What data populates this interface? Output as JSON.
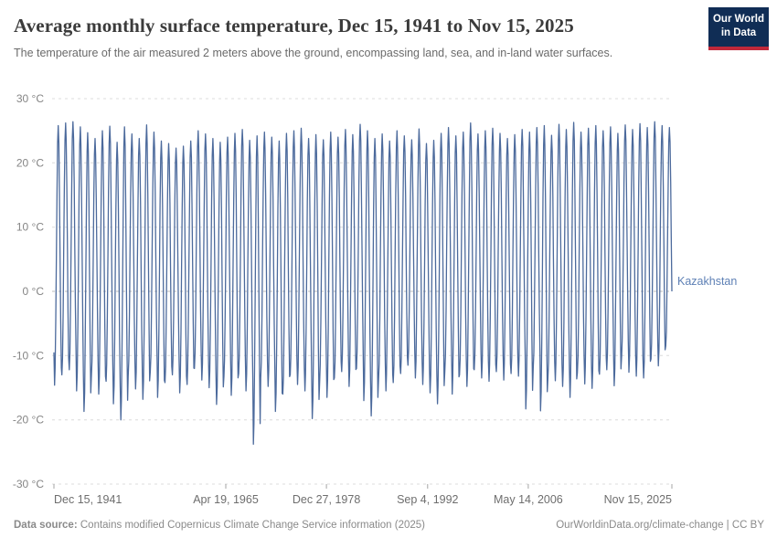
{
  "header": {
    "title": "Average monthly surface temperature, Dec 15, 1941 to Nov 15, 2025",
    "subtitle": "The temperature of the air measured 2 meters above the ground, encompassing land, sea, and in-land water surfaces.",
    "logo": {
      "line1": "Our World",
      "line2": "in Data",
      "bg_color": "#102d55",
      "bar_color": "#c0283a"
    }
  },
  "footer": {
    "datasource_label": "Data source:",
    "datasource_text": " Contains modified Copernicus Climate Change Service information (2025)",
    "link_text": "OurWorldinData.org/climate-change | CC BY"
  },
  "chart_data": {
    "type": "line",
    "title": "Average monthly surface temperature, Dec 15, 1941 to Nov 15, 2025",
    "entity": "Kazakhstan",
    "ylabel": "",
    "xlabel": "",
    "grid": "horizontal-dashed",
    "legend_position": "right-of-line",
    "colors": {
      "line": "#4c6a9c",
      "entity_label": "#5e80b5",
      "grid": "#dcdcdc",
      "grid_zero": "#bcbcbc",
      "axis_text_y": "#858585",
      "axis_text_x": "#6e6e6e",
      "tick": "#a5a5a5"
    },
    "y_axis": {
      "unit_suffix": " °C",
      "range": [
        -30,
        30
      ],
      "ticks": [
        30,
        20,
        10,
        0,
        -10,
        -20,
        -30
      ]
    },
    "x_axis": {
      "total_months": 1007,
      "ticks": [
        {
          "label": "Dec 15, 1941",
          "month": 0
        },
        {
          "label": "Apr 19, 1965",
          "month": 280
        },
        {
          "label": "Dec 27, 1978",
          "month": 444
        },
        {
          "label": "Sep 4, 1992",
          "month": 609
        },
        {
          "label": "May 14, 2006",
          "month": 773
        },
        {
          "label": "Nov 15, 2025",
          "month": 1007
        }
      ]
    },
    "series": {
      "name": "Kazakhstan",
      "start_value": -9.5,
      "start_year": 1942,
      "end_month": 11,
      "summer_max": [
        25.8,
        26.2,
        26.4,
        25.6,
        24.7,
        23.8,
        25.0,
        25.7,
        23.2,
        25.6,
        24.5,
        23.8,
        25.9,
        24.8,
        23.4,
        23.0,
        22.3,
        22.6,
        23.4,
        25.0,
        24.5,
        23.8,
        23.2,
        24.0,
        24.6,
        25.2,
        23.5,
        24.2,
        24.8,
        24.0,
        23.4,
        24.6,
        25.0,
        25.4,
        23.8,
        24.4,
        23.6,
        24.8,
        24.0,
        25.2,
        24.4,
        26.0,
        25.0,
        23.8,
        24.5,
        23.4,
        25.0,
        24.2,
        23.6,
        25.3,
        23.0,
        23.5,
        24.6,
        25.5,
        24.2,
        24.8,
        26.2,
        24.5,
        25.0,
        25.4,
        24.6,
        23.8,
        24.4,
        25.2,
        24.8,
        25.5,
        25.8,
        24.3,
        26.0,
        25.2,
        26.3,
        24.8,
        25.4,
        25.8,
        25.0,
        25.6,
        24.6,
        25.9,
        25.2,
        26.1,
        25.5,
        26.4,
        25.8,
        25.5
      ],
      "winter_min": [
        -14.6,
        -13.0,
        -12.2,
        -15.5,
        -18.7,
        -13.5,
        -16.0,
        -14.0,
        -17.5,
        -20.0,
        -13.3,
        -15.2,
        -16.8,
        -12.5,
        -16.5,
        -14.2,
        -13.0,
        -15.8,
        -14.5,
        -12.0,
        -13.8,
        -15.0,
        -17.6,
        -13.2,
        -16.2,
        -12.8,
        -15.5,
        -23.8,
        -13.5,
        -14.8,
        -18.7,
        -16.0,
        -13.0,
        -14.5,
        -15.5,
        -19.8,
        -14.0,
        -16.5,
        -13.5,
        -12.5,
        -14.8,
        -12.0,
        -17.0,
        -19.4,
        -13.8,
        -15.5,
        -14.2,
        -12.8,
        -11.5,
        -13.5,
        -14.5,
        -15.8,
        -17.5,
        -12.5,
        -16.0,
        -13.0,
        -14.8,
        -12.2,
        -13.5,
        -14.0,
        -12.5,
        -13.8,
        -12.8,
        -13.2,
        -18.3,
        -12.0,
        -18.6,
        -13.5,
        -13.9,
        -14.8,
        -16.5,
        -12.7,
        -14.4,
        -15.1,
        -12.9,
        -12.2,
        -14.7,
        -10.2,
        -12.6,
        -13.2,
        -13.5,
        -10.5,
        -11.6,
        -8.5
      ]
    }
  }
}
